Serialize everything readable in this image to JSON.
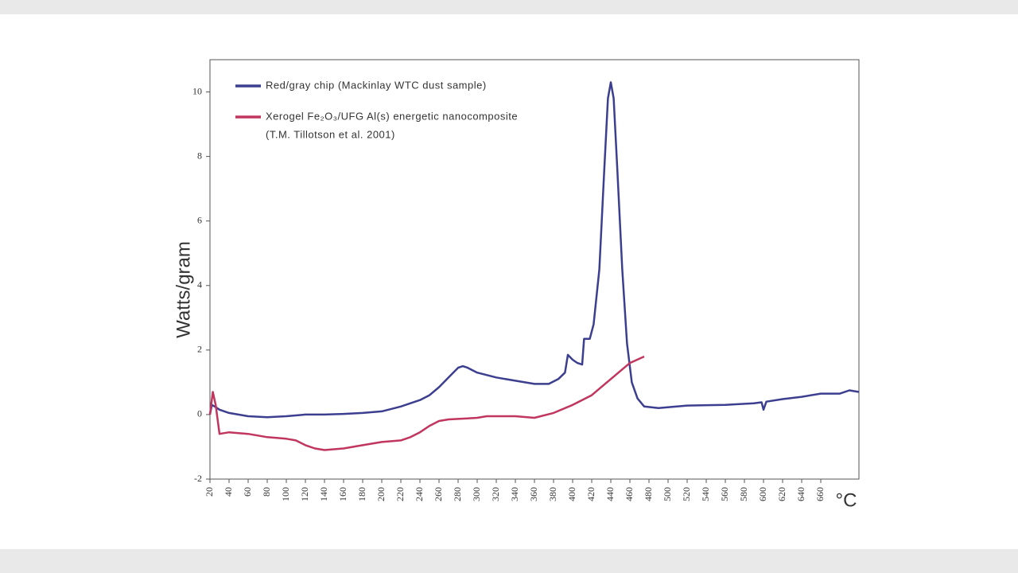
{
  "chart_data": {
    "type": "line",
    "y_label": "Watts/gram",
    "x_label": "°C",
    "xlim": [
      20,
      700
    ],
    "xticks": [
      20,
      40,
      60,
      80,
      100,
      120,
      140,
      160,
      180,
      200,
      220,
      240,
      260,
      280,
      300,
      320,
      340,
      360,
      380,
      400,
      420,
      440,
      460,
      480,
      500,
      520,
      540,
      560,
      580,
      600,
      620,
      640,
      660
    ],
    "ylim": [
      -2,
      11
    ],
    "yticks": [
      -2,
      0,
      2,
      4,
      6,
      8,
      10
    ],
    "legend": "upper left",
    "legend_note": "(T.M. Tillotson et al. 2001)",
    "series": [
      {
        "name": "Red/gray chip (Mackinlay WTC dust sample)",
        "color": "#3c3f8f",
        "x": [
          20,
          22,
          25,
          30,
          40,
          60,
          80,
          100,
          120,
          140,
          160,
          180,
          200,
          220,
          240,
          250,
          260,
          270,
          280,
          285,
          290,
          300,
          320,
          340,
          360,
          375,
          385,
          392,
          395,
          400,
          405,
          410,
          412,
          418,
          422,
          428,
          433,
          437,
          440,
          443,
          447,
          452,
          457,
          462,
          468,
          475,
          490,
          520,
          560,
          590,
          598,
          600,
          603,
          620,
          640,
          660,
          680,
          690,
          700
        ],
        "values": [
          0.0,
          0.3,
          0.25,
          0.15,
          0.05,
          -0.05,
          -0.08,
          -0.05,
          0.0,
          0.0,
          0.02,
          0.05,
          0.1,
          0.25,
          0.45,
          0.6,
          0.85,
          1.15,
          1.45,
          1.5,
          1.45,
          1.3,
          1.15,
          1.05,
          0.95,
          0.95,
          1.1,
          1.3,
          1.85,
          1.7,
          1.6,
          1.55,
          2.35,
          2.35,
          2.8,
          4.5,
          7.5,
          9.8,
          10.3,
          9.8,
          7.5,
          4.5,
          2.2,
          1.0,
          0.5,
          0.25,
          0.2,
          0.28,
          0.3,
          0.35,
          0.38,
          0.15,
          0.4,
          0.48,
          0.55,
          0.65,
          0.65,
          0.75,
          0.7
        ]
      },
      {
        "name": "Xerogel Fe₂O₃/UFG Al(s) energetic nanocomposite",
        "color": "#c0365e",
        "x": [
          20,
          23,
          26,
          30,
          40,
          60,
          80,
          100,
          110,
          120,
          130,
          140,
          160,
          180,
          200,
          220,
          230,
          240,
          250,
          260,
          270,
          290,
          300,
          310,
          340,
          360,
          380,
          400,
          420,
          440,
          460,
          475
        ],
        "values": [
          0.0,
          0.7,
          0.3,
          -0.6,
          -0.55,
          -0.6,
          -0.7,
          -0.75,
          -0.8,
          -0.95,
          -1.05,
          -1.1,
          -1.05,
          -0.95,
          -0.85,
          -0.8,
          -0.7,
          -0.55,
          -0.35,
          -0.2,
          -0.15,
          -0.12,
          -0.1,
          -0.05,
          -0.05,
          -0.1,
          0.05,
          0.3,
          0.6,
          1.1,
          1.6,
          1.8
        ]
      }
    ]
  }
}
